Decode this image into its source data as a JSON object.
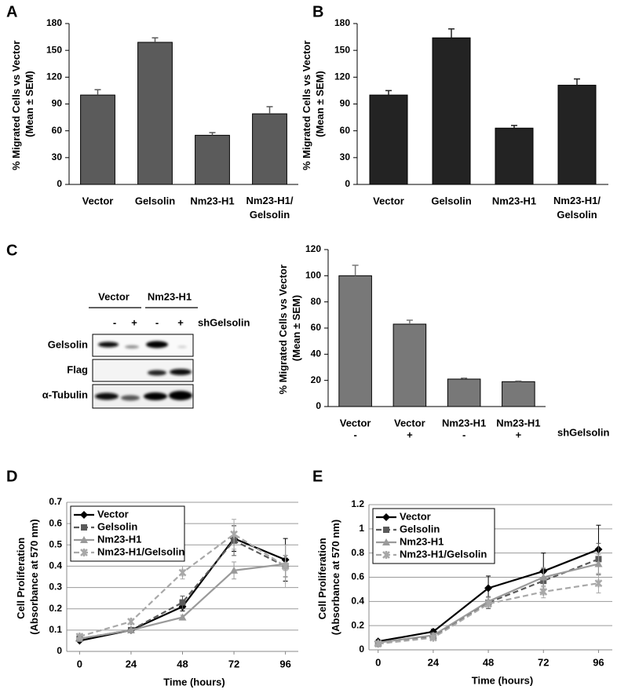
{
  "panel_labels": [
    "A",
    "B",
    "C",
    "D",
    "E"
  ],
  "blot": {
    "groups": [
      "Vector",
      "Nm23-H1"
    ],
    "signs": [
      "-",
      "+",
      "-",
      "+"
    ],
    "treatment": "shGelsolin",
    "rows": [
      "Gelsolin",
      "Flag",
      "α-Tubulin"
    ]
  },
  "chart_data": [
    {
      "type": "bar",
      "ylabel": "% Migrated Cells vs Vector (Mean ± SEM)",
      "categories": [
        "Vector",
        "Gelsolin",
        "Nm23-H1",
        "Nm23-H1/Gelsolin"
      ],
      "values": [
        100,
        159,
        55,
        79
      ],
      "errors": [
        6,
        5,
        3,
        8
      ],
      "color": "#5b5b5b",
      "ylim": [
        0,
        180
      ],
      "yticks": [
        0,
        30,
        60,
        90,
        120,
        150,
        180
      ]
    },
    {
      "type": "bar",
      "ylabel": "% Migrated Cells vs Vector (Mean ± SEM)",
      "categories": [
        "Vector",
        "Gelsolin",
        "Nm23-H1",
        "Nm23-H1/Gelsolin"
      ],
      "values": [
        100,
        164,
        63,
        111
      ],
      "errors": [
        5,
        10,
        3,
        7
      ],
      "color": "#232323",
      "ylim": [
        0,
        180
      ],
      "yticks": [
        0,
        30,
        60,
        90,
        120,
        150,
        180
      ]
    },
    {
      "type": "bar",
      "ylabel": "% Migrated Cells vs Vector (Mean ± SEM)",
      "categories": [
        "Vector",
        "Vector",
        "Nm23-H1",
        "Nm23-H1"
      ],
      "subcategories": [
        "-",
        "+",
        "-",
        "+"
      ],
      "subcategory_title": "shGelsolin",
      "values": [
        100,
        63,
        21,
        19
      ],
      "errors": [
        8,
        3,
        0.7,
        0.5
      ],
      "color": "#787878",
      "ylim": [
        0,
        120
      ],
      "yticks": [
        0,
        20,
        40,
        60,
        80,
        100,
        120
      ]
    },
    {
      "type": "line",
      "ylabel": "Cell Proliferation (Absorbance at 570 nm)",
      "xlabel": "Time (hours)",
      "x": [
        0,
        24,
        48,
        72,
        96
      ],
      "xlim": [
        -6,
        102
      ],
      "xticks": [
        0,
        24,
        48,
        72,
        96
      ],
      "ylim": [
        0,
        0.7
      ],
      "yticks": [
        0,
        0.1,
        0.2,
        0.3,
        0.4,
        0.5,
        0.6,
        0.7
      ],
      "grid": true,
      "series": [
        {
          "name": "Vector",
          "color": "#000000",
          "marker": "diamond",
          "dashed": false,
          "values": [
            0.05,
            0.1,
            0.21,
            0.53,
            0.43
          ],
          "errors": [
            0.005,
            0.005,
            0.02,
            0.06,
            0.1
          ]
        },
        {
          "name": "Gelsolin",
          "color": "#5a5a5a",
          "marker": "square",
          "dashed": true,
          "values": [
            0.06,
            0.1,
            0.23,
            0.52,
            0.4
          ],
          "errors": [
            0.005,
            0.01,
            0.03,
            0.07,
            0.05
          ]
        },
        {
          "name": "Nm23-H1",
          "color": "#9a9a9a",
          "marker": "triangle",
          "dashed": false,
          "values": [
            0.06,
            0.1,
            0.16,
            0.38,
            0.41
          ],
          "errors": [
            0.005,
            0.005,
            0.01,
            0.04,
            0.03
          ]
        },
        {
          "name": "Nm23-H1/Gelsolin",
          "color": "#a8a8a8",
          "marker": "cross",
          "dashed": true,
          "values": [
            0.07,
            0.14,
            0.37,
            0.55,
            0.4
          ],
          "errors": [
            0.005,
            0.01,
            0.03,
            0.07,
            0.1
          ]
        }
      ]
    },
    {
      "type": "line",
      "ylabel": "Cell Proliferation (Absorbance at 570 nm)",
      "xlabel": "Time (hours)",
      "x": [
        0,
        24,
        48,
        72,
        96
      ],
      "xlim": [
        -4,
        102
      ],
      "xticks": [
        0,
        24,
        48,
        72,
        96
      ],
      "ylim": [
        0,
        1.2
      ],
      "yticks": [
        0,
        0.2,
        0.4,
        0.6,
        0.8,
        1,
        1.2
      ],
      "grid": true,
      "series": [
        {
          "name": "Vector",
          "color": "#000000",
          "marker": "diamond",
          "dashed": false,
          "values": [
            0.07,
            0.15,
            0.51,
            0.65,
            0.83
          ],
          "errors": [
            0.01,
            0.02,
            0.1,
            0.15,
            0.2
          ]
        },
        {
          "name": "Gelsolin",
          "color": "#5a5a5a",
          "marker": "square",
          "dashed": true,
          "values": [
            0.05,
            0.11,
            0.39,
            0.57,
            0.75
          ],
          "errors": [
            0.01,
            0.02,
            0.05,
            0.1,
            0.13
          ]
        },
        {
          "name": "Nm23-H1",
          "color": "#9a9a9a",
          "marker": "triangle",
          "dashed": false,
          "values": [
            0.06,
            0.12,
            0.4,
            0.6,
            0.71
          ],
          "errors": [
            0.01,
            0.02,
            0.03,
            0.08,
            0.08
          ]
        },
        {
          "name": "Nm23-H1/Gelsolin",
          "color": "#a8a8a8",
          "marker": "cross",
          "dashed": true,
          "values": [
            0.05,
            0.1,
            0.38,
            0.48,
            0.55
          ],
          "errors": [
            0.01,
            0.01,
            0.03,
            0.05,
            0.08
          ]
        }
      ]
    }
  ]
}
